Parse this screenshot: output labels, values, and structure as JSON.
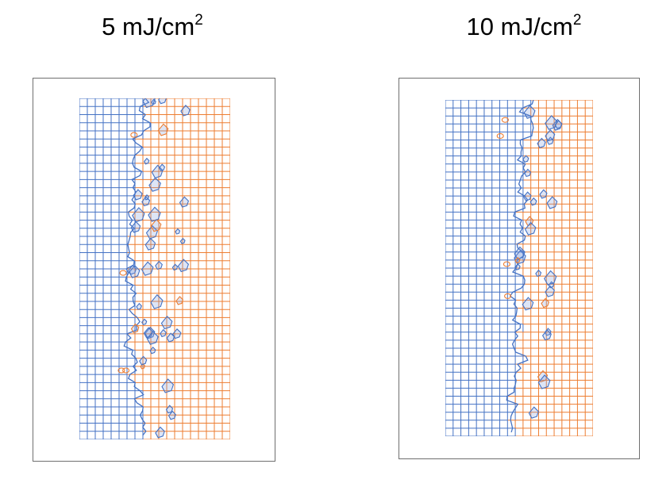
{
  "panels": [
    {
      "title": "5 mJ/cm",
      "title_superscript": "2",
      "blue_fraction_by_row": [
        0.42,
        0.4,
        0.44,
        0.46,
        0.41,
        0.38,
        0.4,
        0.36,
        0.39,
        0.42,
        0.37,
        0.35,
        0.38,
        0.36,
        0.33,
        0.35,
        0.37,
        0.34,
        0.3,
        0.33,
        0.36,
        0.34,
        0.31,
        0.35,
        0.38,
        0.36,
        0.33,
        0.35,
        0.37,
        0.34,
        0.32,
        0.36,
        0.38,
        0.35,
        0.33,
        0.37,
        0.4,
        0.38,
        0.42,
        0.44,
        0.4,
        0.43
      ]
    },
    {
      "title": "10 mJ/cm",
      "title_superscript": "2",
      "blue_fraction_by_row": [
        0.56,
        0.55,
        0.57,
        0.58,
        0.56,
        0.53,
        0.54,
        0.52,
        0.55,
        0.53,
        0.51,
        0.54,
        0.52,
        0.5,
        0.47,
        0.5,
        0.53,
        0.51,
        0.48,
        0.5,
        0.47,
        0.49,
        0.52,
        0.5,
        0.47,
        0.49,
        0.46,
        0.48,
        0.51,
        0.49,
        0.46,
        0.48,
        0.5,
        0.47,
        0.45,
        0.48,
        0.46,
        0.44,
        0.47,
        0.45,
        0.43,
        0.46
      ]
    }
  ],
  "colors": {
    "blue_phase": "#4472c4",
    "orange_phase": "#ed7d31",
    "frame_border": "#6f6f6f"
  }
}
